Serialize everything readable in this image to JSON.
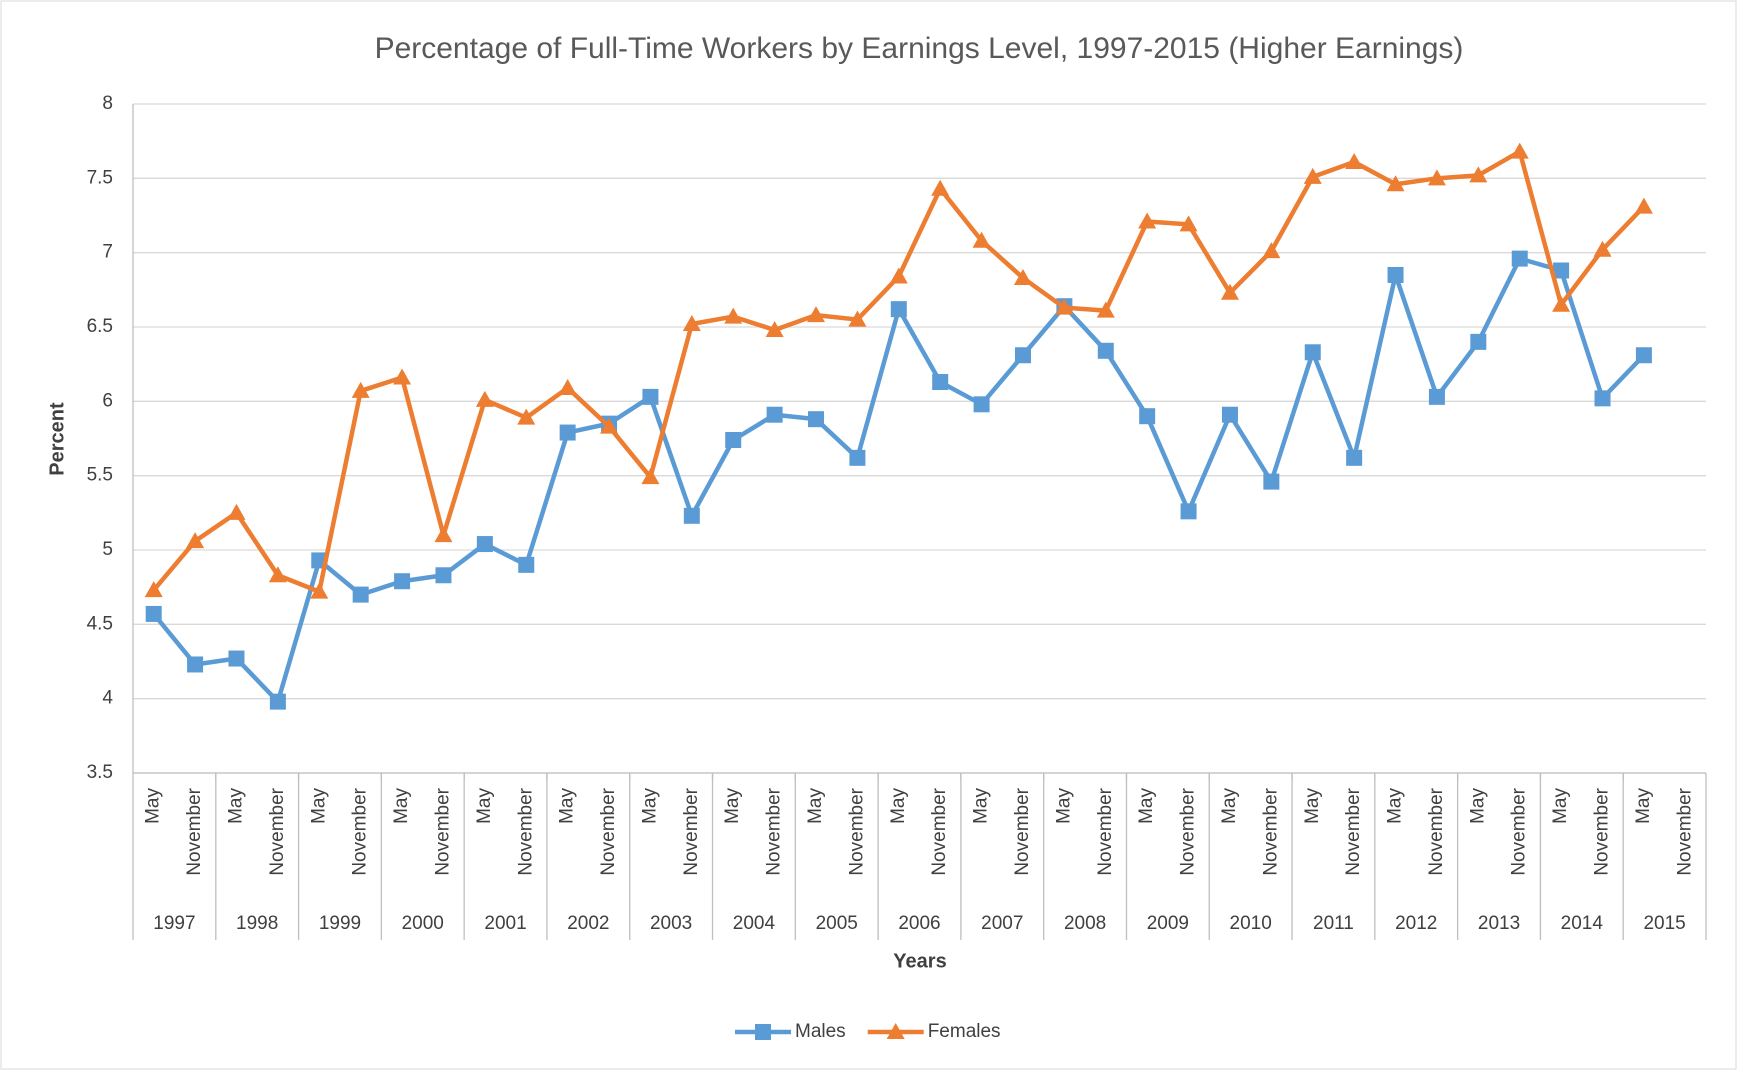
{
  "chart_data": {
    "type": "line",
    "title": "Percentage of Full-Time Workers by Earnings Level, 1997-2015 (Higher Earnings)",
    "x_label": "Years",
    "y_label": "Percent",
    "categories": [
      "May",
      "November",
      "May",
      "November",
      "May",
      "November",
      "May",
      "November",
      "May",
      "November",
      "May",
      "November",
      "May",
      "November",
      "May",
      "November",
      "May",
      "November",
      "May",
      "November",
      "May",
      "November",
      "May",
      "November",
      "May",
      "November",
      "May",
      "November",
      "May",
      "November",
      "May",
      "November",
      "May",
      "November",
      "May",
      "November",
      "May",
      "November"
    ],
    "category_groups": [
      "1997",
      "1998",
      "1999",
      "2000",
      "2001",
      "2002",
      "2003",
      "2004",
      "2005",
      "2006",
      "2007",
      "2008",
      "2009",
      "2010",
      "2011",
      "2012",
      "2013",
      "2014",
      "2015"
    ],
    "series": [
      {
        "name": "Males",
        "color": "#5b9bd5",
        "marker": "square",
        "values": [
          4.57,
          4.23,
          4.27,
          3.98,
          4.93,
          4.7,
          4.79,
          4.83,
          5.04,
          4.9,
          5.79,
          5.85,
          6.03,
          5.23,
          5.74,
          5.91,
          5.88,
          5.62,
          6.62,
          6.13,
          5.98,
          6.31,
          6.64,
          6.34,
          5.9,
          5.26,
          5.91,
          5.46,
          6.33,
          5.62,
          6.85,
          6.03,
          6.4,
          6.96,
          6.88,
          6.02,
          6.31,
          null
        ]
      },
      {
        "name": "Females",
        "color": "#ed7d31",
        "marker": "triangle",
        "values": [
          4.73,
          5.06,
          5.25,
          4.83,
          4.72,
          6.07,
          6.16,
          5.1,
          6.01,
          5.89,
          6.09,
          5.83,
          5.49,
          6.52,
          6.57,
          6.48,
          6.58,
          6.55,
          6.84,
          7.43,
          7.08,
          6.83,
          6.63,
          6.61,
          7.21,
          7.19,
          6.73,
          7.01,
          7.51,
          7.61,
          7.46,
          7.5,
          7.52,
          7.68,
          6.65,
          7.02,
          7.31,
          null
        ]
      }
    ],
    "ylim": [
      3.5,
      8
    ],
    "yticks": [
      3.5,
      4,
      4.5,
      5,
      5.5,
      6,
      6.5,
      7,
      7.5,
      8
    ],
    "grid": true,
    "legend": "bottom"
  }
}
